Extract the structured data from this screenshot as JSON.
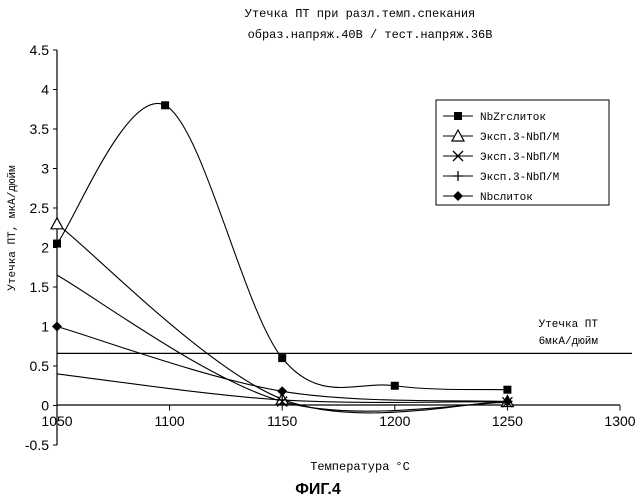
{
  "chart_data": {
    "type": "line",
    "title": "Утечка ПТ при разл.темп.спекания",
    "subtitle": "образ.напряж.40В / тест.напряж.36В",
    "xlabel": "Температура",
    "xlabel_unit": "°C",
    "ylabel": "Утечка ПТ, мкА/дюйм",
    "xlim": [
      1050,
      1300
    ],
    "ylim": [
      -0.5,
      4.5
    ],
    "xticks": [
      1050,
      1100,
      1150,
      1200,
      1250,
      1300
    ],
    "xtick_labels": [
      "1050",
      "1100",
      "1150",
      "1200",
      "1250",
      "1300"
    ],
    "yticks": [
      -0.5,
      0,
      0.5,
      1,
      1.5,
      2,
      2.5,
      3,
      3.5,
      4,
      4.5
    ],
    "ytick_labels": [
      "-0.5",
      "0",
      "0.5",
      "1",
      "1.5",
      "2",
      "2.5",
      "3",
      "3.5",
      "4",
      "4.5"
    ],
    "grid": false,
    "legend_position": "top-right",
    "series": [
      {
        "name": "NbZrслиток",
        "marker": "square",
        "x": [
          1050,
          1098,
          1150,
          1200,
          1250
        ],
        "y": [
          2.05,
          3.8,
          0.6,
          0.25,
          0.2
        ]
      },
      {
        "name": "Эксп.3-NbП/М",
        "marker": "triangle",
        "x": [
          1050,
          1150,
          1250
        ],
        "y": [
          2.3,
          0.08,
          0.05
        ]
      },
      {
        "name": "Эксп.3-NbП/М",
        "marker": "x",
        "x": [
          1050,
          1150,
          1250
        ],
        "y": [
          1.65,
          0.05,
          0.04
        ]
      },
      {
        "name": "Эксп.3-NbП/М",
        "marker": "plus",
        "x": [
          1050,
          1150,
          1250
        ],
        "y": [
          0.4,
          0.07,
          0.05
        ]
      },
      {
        "name": "Nbслиток",
        "marker": "diamond",
        "x": [
          1050,
          1150,
          1250
        ],
        "y": [
          1.0,
          0.18,
          0.05
        ]
      }
    ],
    "reference_line": {
      "y": 0.66,
      "label_line1": "Утечка ПТ",
      "label_line2": "6мкА/дюйм"
    }
  },
  "figure_caption": "ФИГ.4"
}
